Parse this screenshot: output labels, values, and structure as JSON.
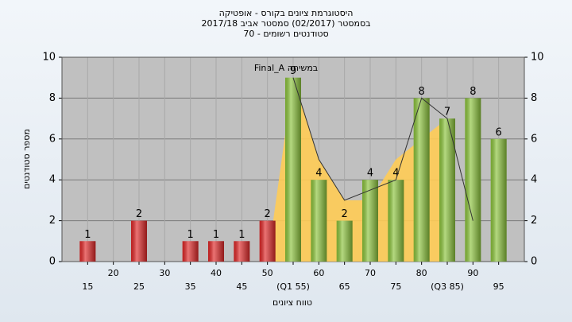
{
  "chart_data": {
    "type": "bar",
    "title": [
      "היסטוגרמת ציונים בקורס - אופטיקה",
      "בסמסטר  (02/2017)  סמסטר אביב 2017/18",
      "סטודנטים רשומים - 70"
    ],
    "annotation": "Final_A במשיחה",
    "xlabel": "טווח ציונים",
    "ylabel": "מספר סטודנטים",
    "x": [
      15,
      20,
      25,
      30,
      35,
      40,
      45,
      50,
      55,
      60,
      65,
      70,
      75,
      80,
      85,
      90,
      95
    ],
    "values": [
      1,
      0,
      2,
      0,
      1,
      1,
      1,
      2,
      9,
      4,
      2,
      4,
      4,
      8,
      7,
      8,
      6
    ],
    "colors": [
      "#e02828",
      "#e02828",
      "#e02828",
      "#e02828",
      "#e02828",
      "#e02828",
      "#e02828",
      "#e02828",
      "#8cc43c",
      "#8cc43c",
      "#8cc43c",
      "#8cc43c",
      "#8cc43c",
      "#8cc43c",
      "#8cc43c",
      "#8cc43c",
      "#8cc43c"
    ],
    "area": {
      "color": "#ffcc55",
      "values": [
        null,
        null,
        null,
        null,
        null,
        null,
        null,
        0,
        9,
        5,
        3,
        3,
        5,
        6,
        7,
        null,
        null
      ]
    },
    "line": {
      "color": "#333333",
      "values": [
        null,
        null,
        null,
        null,
        null,
        null,
        null,
        null,
        9,
        5,
        3,
        3.5,
        4,
        8,
        7,
        2,
        null
      ]
    },
    "xlim": [
      10,
      100
    ],
    "xticks": [
      15,
      20,
      25,
      30,
      35,
      40,
      45,
      50,
      {
        "value": 55,
        "label": "(Q1 55)"
      },
      60,
      65,
      70,
      75,
      80,
      {
        "value": 85,
        "label": "(Q3 85)"
      },
      90,
      95
    ],
    "ylim": [
      0,
      10
    ],
    "yticks": [
      0,
      2,
      4,
      6,
      8,
      10
    ],
    "y2lim": [
      0,
      10
    ],
    "y2ticks": [
      0,
      2,
      4,
      6,
      8,
      10
    ],
    "grid": true
  }
}
